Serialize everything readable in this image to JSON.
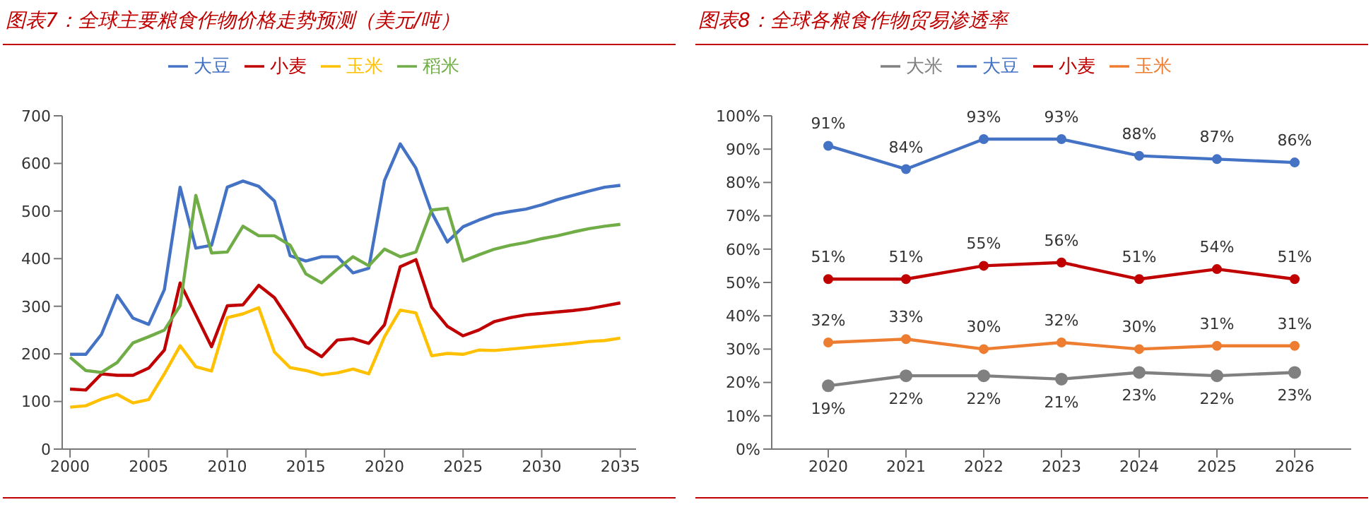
{
  "chart_data": [
    {
      "type": "line",
      "title": "图表7：全球主要粮食作物价格走势预测（美元/吨）",
      "x": [
        2000,
        2001,
        2002,
        2003,
        2004,
        2005,
        2006,
        2007,
        2008,
        2009,
        2010,
        2011,
        2012,
        2013,
        2014,
        2015,
        2016,
        2017,
        2018,
        2019,
        2020,
        2021,
        2022,
        2023,
        2024,
        2025,
        2026,
        2027,
        2028,
        2029,
        2030,
        2031,
        2032,
        2033,
        2034,
        2035
      ],
      "xlim": [
        1999.5,
        2036
      ],
      "xticks": [
        2000,
        2005,
        2010,
        2015,
        2020,
        2025,
        2030,
        2035
      ],
      "ylim": [
        0,
        700
      ],
      "yticks": [
        0,
        100,
        200,
        300,
        400,
        500,
        600,
        700
      ],
      "legend": "top",
      "grid": false,
      "series": [
        {
          "name": "小麦",
          "color": "#c00000",
          "values": [
            126,
            124,
            158,
            155,
            155,
            170,
            208,
            349,
            282,
            215,
            301,
            303,
            344,
            318,
            268,
            215,
            194,
            229,
            232,
            222,
            261,
            383,
            398,
            298,
            258,
            238,
            250,
            268,
            276,
            282,
            285,
            288,
            291,
            295,
            301,
            307
          ]
        },
        {
          "name": "玉米",
          "color": "#ffc000",
          "values": [
            88,
            91,
            105,
            115,
            97,
            104,
            158,
            217,
            173,
            164,
            276,
            284,
            297,
            204,
            171,
            165,
            156,
            160,
            168,
            158,
            236,
            292,
            286,
            196,
            201,
            199,
            208,
            207,
            210,
            213,
            216,
            219,
            222,
            226,
            228,
            233
          ]
        },
        {
          "name": "大豆",
          "color": "#4472c4",
          "values": [
            199,
            199,
            241,
            323,
            275,
            262,
            335,
            550,
            422,
            428,
            550,
            563,
            552,
            521,
            406,
            395,
            404,
            404,
            370,
            380,
            564,
            641,
            590,
            497,
            435,
            467,
            481,
            493,
            499,
            504,
            513,
            524,
            533,
            542,
            550,
            554
          ]
        },
        {
          "name": "稻米",
          "color": "#70ad47",
          "values": [
            193,
            165,
            161,
            182,
            223,
            236,
            250,
            301,
            533,
            412,
            414,
            468,
            448,
            448,
            428,
            368,
            349,
            378,
            404,
            385,
            420,
            404,
            414,
            502,
            506,
            395,
            408,
            420,
            428,
            434,
            442,
            448,
            456,
            463,
            468,
            472
          ]
        }
      ]
    },
    {
      "type": "line",
      "title": "图表8：全球各粮食作物贸易渗透率",
      "categories": [
        "2020",
        "2021",
        "2022",
        "2023",
        "2024",
        "2025",
        "2026"
      ],
      "ylim": [
        0,
        100
      ],
      "yticks": [
        {
          "value": 0,
          "label": "0%"
        },
        {
          "value": 10,
          "label": "10%"
        },
        {
          "value": 20,
          "label": "20%"
        },
        {
          "value": 30,
          "label": "30%"
        },
        {
          "value": 40,
          "label": "40%"
        },
        {
          "value": 50,
          "label": "50%"
        },
        {
          "value": 60,
          "label": "60%"
        },
        {
          "value": 70,
          "label": "70%"
        },
        {
          "value": 80,
          "label": "80%"
        },
        {
          "value": 90,
          "label": "90%"
        },
        {
          "value": 100,
          "label": "100%"
        }
      ],
      "legend": "top",
      "grid": false,
      "marker": "circle",
      "series": [
        {
          "name": "大豆",
          "color": "#4472c4",
          "values": [
            91,
            84,
            93,
            93,
            88,
            87,
            86
          ],
          "value_labels": [
            "91%",
            "84%",
            "93%",
            "93%",
            "88%",
            "87%",
            "86%"
          ]
        },
        {
          "name": "玉米",
          "color": "#ed7d31",
          "values": [
            32,
            33,
            30,
            32,
            30,
            31,
            31
          ],
          "value_labels": [
            "32%",
            "33%",
            "30%",
            "32%",
            "30%",
            "31%",
            "31%"
          ]
        },
        {
          "name": "小麦",
          "color": "#c00000",
          "values": [
            51,
            51,
            55,
            56,
            51,
            54,
            51
          ],
          "value_labels": [
            "51%",
            "51%",
            "55%",
            "56%",
            "51%",
            "54%",
            "51%"
          ]
        },
        {
          "name": "大米",
          "color": "#808080",
          "values": [
            19,
            22,
            22,
            21,
            23,
            22,
            23
          ],
          "value_labels": [
            "19%",
            "22%",
            "22%",
            "21%",
            "23%",
            "22%",
            "23%"
          ]
        }
      ]
    }
  ]
}
